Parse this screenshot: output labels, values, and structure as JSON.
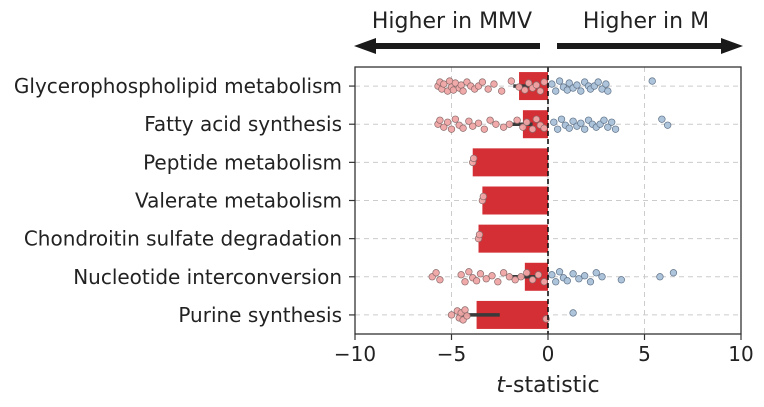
{
  "chart_data": {
    "type": "bar",
    "orientation": "horizontal",
    "categories": [
      "Glycerophospholipid metabolism",
      "Fatty acid synthesis",
      "Peptide metabolism",
      "Valerate metabolism",
      "Chondroitin sulfate degradation",
      "Nucleotide interconversion",
      "Purine synthesis"
    ],
    "values": [
      -1.5,
      -1.3,
      -3.9,
      -3.4,
      -3.6,
      -1.2,
      -3.7
    ],
    "error_low": [
      -1.8,
      -2.0,
      -3.9,
      -3.4,
      -3.6,
      -2.0,
      -4.6
    ],
    "error_high": [
      -1.0,
      -0.8,
      -3.9,
      -3.4,
      -3.6,
      -0.6,
      -2.5
    ],
    "bar_color": "#d32f35",
    "xlabel_italic": "t",
    "xlabel_rest": "-statistic",
    "xlim": [
      -10,
      10
    ],
    "xticks": [
      -10,
      -5,
      0,
      5,
      10
    ],
    "xtick_labels": [
      "−10",
      "−5",
      "0",
      "5",
      "10"
    ],
    "grid": true,
    "annotations": {
      "left": "Higher in MMV",
      "right": "Higher in M"
    },
    "points": {
      "negative_color": "#f0a5a5",
      "positive_color": "#a9c1d9",
      "rows": [
        {
          "neg": [
            -5.7,
            -5.6,
            -5.5,
            -5.4,
            -5.2,
            -5.1,
            -5.0,
            -4.9,
            -4.8,
            -4.6,
            -4.5,
            -4.4,
            -4.2,
            -4.0,
            -3.8,
            -3.6,
            -3.4,
            -3.1,
            -2.8,
            -2.4,
            -1.9,
            -1.5,
            -1.2,
            -1.0,
            -0.8,
            -0.6,
            -0.4,
            -0.2
          ],
          "pos": [
            0.2,
            0.4,
            0.6,
            0.8,
            1.0,
            1.1,
            1.3,
            1.5,
            1.7,
            1.9,
            2.1,
            2.2,
            2.4,
            2.6,
            2.8,
            3.0,
            3.1,
            5.4
          ]
        },
        {
          "neg": [
            -5.7,
            -5.6,
            -5.4,
            -5.2,
            -5.0,
            -4.8,
            -4.6,
            -4.4,
            -4.1,
            -3.9,
            -3.6,
            -3.3,
            -3.0,
            -2.7,
            -2.3,
            -2.0,
            -1.6,
            -1.3,
            -1.1,
            -0.8,
            -0.6,
            -0.4,
            -0.2
          ],
          "pos": [
            0.3,
            0.5,
            0.7,
            0.9,
            1.1,
            1.3,
            1.5,
            1.7,
            1.9,
            2.1,
            2.3,
            2.5,
            2.7,
            2.9,
            3.1,
            3.3,
            3.5,
            5.9,
            6.2
          ]
        },
        {
          "neg": [
            -3.9,
            -3.85
          ],
          "pos": []
        },
        {
          "neg": [
            -3.4,
            -3.35
          ],
          "pos": []
        },
        {
          "neg": [
            -3.6,
            -3.55
          ],
          "pos": []
        },
        {
          "neg": [
            -6.0,
            -5.8,
            -5.6,
            -4.5,
            -4.3,
            -4.1,
            -3.9,
            -3.7,
            -3.5,
            -3.2,
            -2.9,
            -2.6,
            -2.3,
            -2.0,
            -1.7,
            -1.4,
            -1.1,
            -0.8,
            -0.5,
            -0.2
          ],
          "pos": [
            0.2,
            0.4,
            0.6,
            0.8,
            1.0,
            1.3,
            1.6,
            1.9,
            2.2,
            2.5,
            2.8,
            3.8,
            5.8,
            6.5
          ]
        },
        {
          "neg": [
            -5.0,
            -4.7,
            -4.6,
            -4.5,
            -4.4,
            -4.3,
            -4.2,
            -0.1
          ],
          "pos": [
            1.3
          ]
        }
      ]
    }
  }
}
